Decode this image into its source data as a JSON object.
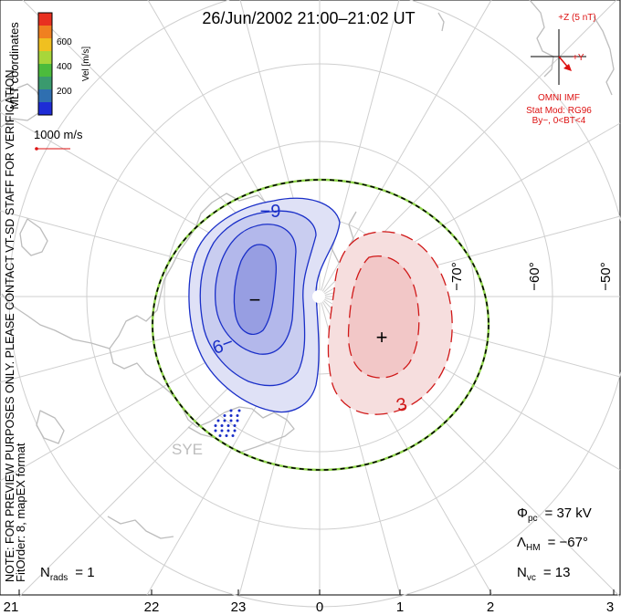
{
  "title": "26/Jun/2002 21:00–21:02 UT",
  "colorbar": {
    "label": "Vel [m/s]",
    "ticks": [
      "600",
      "400",
      "200"
    ],
    "colors": [
      "#1e2cd6",
      "#2f6fb0",
      "#3a9a6e",
      "#4cbb3c",
      "#a8d63a",
      "#f0c020",
      "#f08020",
      "#e83020"
    ]
  },
  "coord_label": "MLT coordinates",
  "vector_scale": "1000 m/s",
  "side_note_line1": "NOTE: FOR PREVIEW PURPOSES ONLY. PLEASE CONTACT VT-SD STAFF FOR VERIFICATION.",
  "side_note_line2": "FitOrder: 8, mapEX format",
  "imf": {
    "z_label": "+Z (5 nT)",
    "y_label": "+Y",
    "source": "OMNI IMF",
    "model": "Stat Mod: RG96",
    "condition": "By−, 0<BT<4"
  },
  "mlat_labels": [
    "−70°",
    "−60°",
    "−50°"
  ],
  "mlt_labels": [
    "21",
    "22",
    "23",
    "0",
    "1",
    "2",
    "3"
  ],
  "contour_labels": {
    "negative": "−9",
    "positive": "3"
  },
  "cells": {
    "negative_marker": "−",
    "positive_marker": "+"
  },
  "radar": "SYE",
  "stats": {
    "phi_symbol": "Φ",
    "phi_sub": "pc",
    "phi_value": "= 37 kV",
    "lambda_symbol": "Λ",
    "lambda_sub": "HM",
    "lambda_value": "= −67°",
    "nvc_symbol": "N",
    "nvc_sub": "vc",
    "nvc_value": "= 13",
    "nrads_symbol": "N",
    "nrads_sub": "rads",
    "nrads_value": "= 1"
  },
  "colors": {
    "negative_line": "#1a2fc8",
    "negative_fill": "#b7bde9",
    "positive_line": "#d01818",
    "positive_fill": "#f2c7c7",
    "grid": "#cfcfcf",
    "land": "#bdbdbd",
    "text_red": "#dd1111",
    "boundary_green": "#8fd44a"
  }
}
